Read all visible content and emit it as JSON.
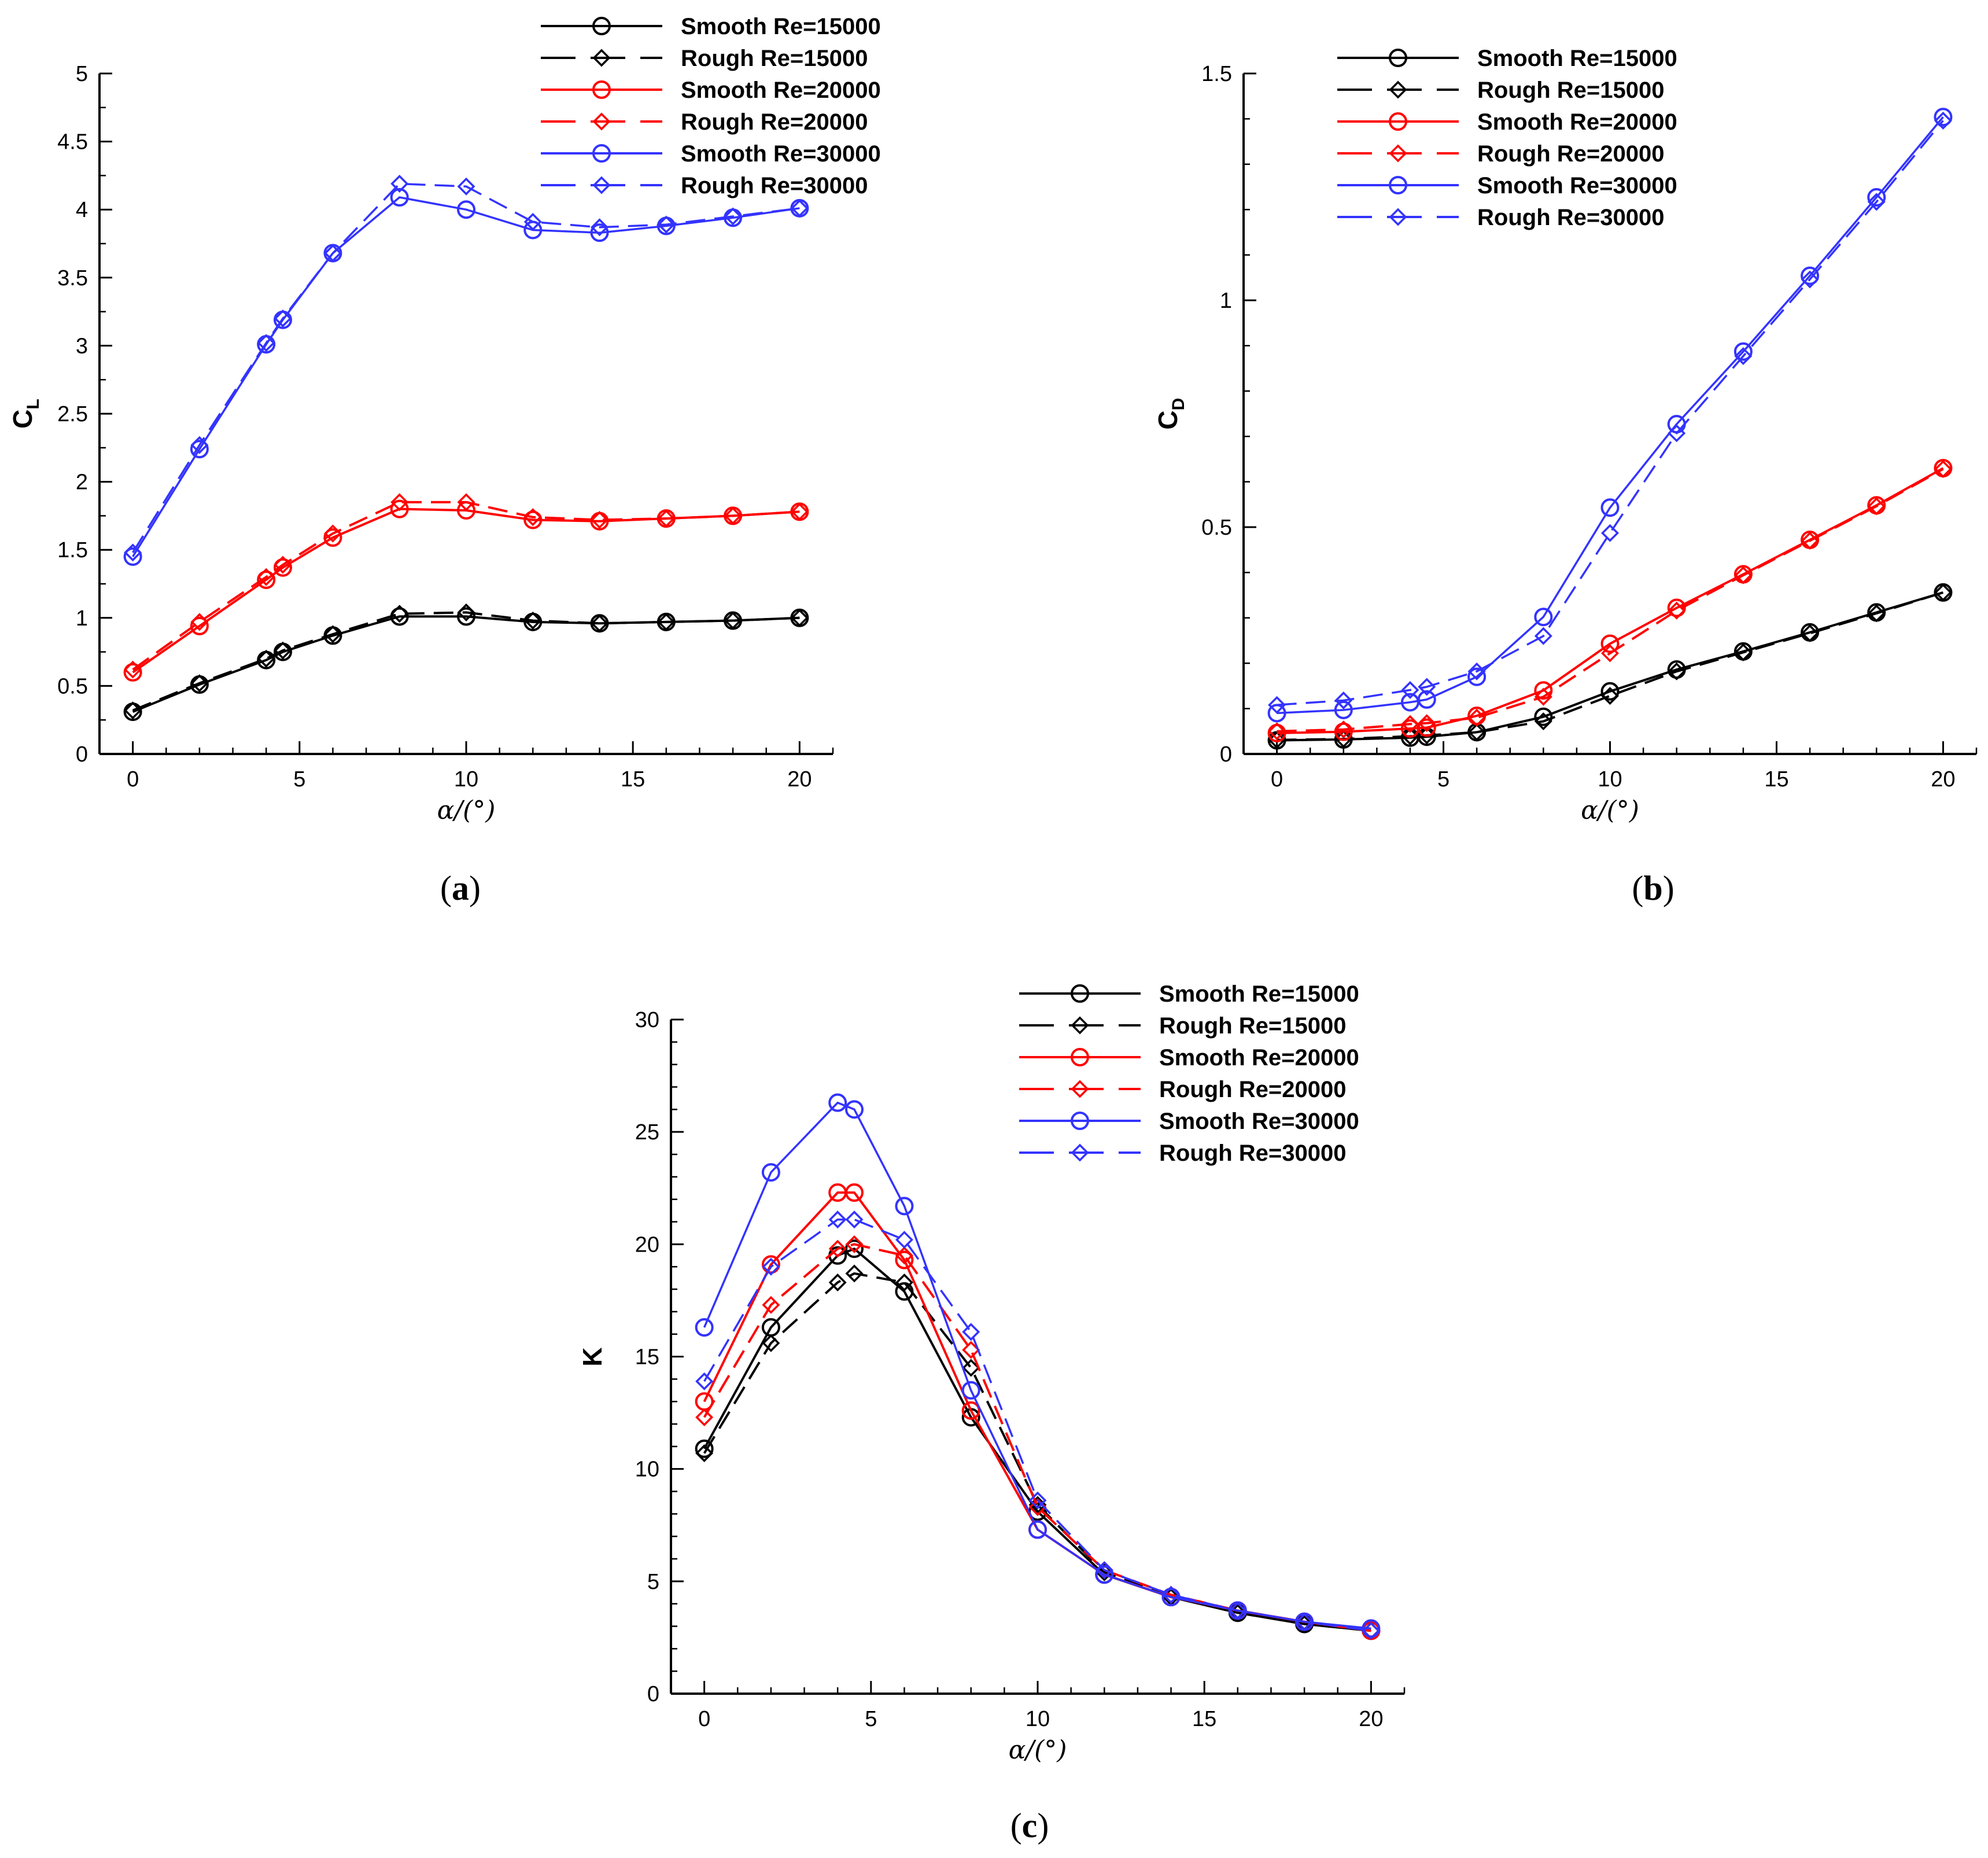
{
  "colors": {
    "Re15000": "#000000",
    "Re20000": "#ff0000",
    "Re30000": "#3333ff"
  },
  "legend_entries": [
    "Smooth Re=15000",
    "Rough Re=15000",
    "Smooth Re=20000",
    "Rough Re=20000",
    "Smooth Re=30000",
    "Rough Re=30000"
  ],
  "chart_data": [
    {
      "id": "a",
      "panel_label": "a",
      "type": "line",
      "xlabel": "α/(°)",
      "ylabel": "C",
      "ylabel_sub": "L",
      "xlim": [
        -1,
        21
      ],
      "ylim": [
        0,
        5
      ],
      "xticks": [
        0,
        5,
        10,
        15,
        20
      ],
      "yticks": [
        0,
        0.5,
        1,
        1.5,
        2,
        2.5,
        3,
        3.5,
        4,
        4.5,
        5
      ],
      "yticklabels": [
        "0",
        "0.5",
        "1",
        "1.5",
        "2",
        "2.5",
        "3",
        "3.5",
        "4",
        "4.5",
        "5"
      ],
      "grid": false,
      "legend_position": "top-right",
      "series": [
        {
          "name": "Smooth Re=15000",
          "marker": "circle",
          "dash": false,
          "color_key": "Re15000",
          "x": [
            0,
            2,
            4,
            4.5,
            6,
            8,
            10,
            12,
            14,
            16,
            18,
            20
          ],
          "y": [
            0.31,
            0.51,
            0.69,
            0.75,
            0.87,
            1.01,
            1.01,
            0.97,
            0.96,
            0.97,
            0.98,
            1.0
          ]
        },
        {
          "name": "Rough Re=15000",
          "marker": "diamond",
          "dash": true,
          "color_key": "Re15000",
          "x": [
            0,
            2,
            4,
            4.5,
            6,
            8,
            10,
            12,
            14,
            16,
            18,
            20
          ],
          "y": [
            0.32,
            0.52,
            0.7,
            0.76,
            0.88,
            1.03,
            1.04,
            0.98,
            0.96,
            0.97,
            0.98,
            1.0
          ]
        },
        {
          "name": "Smooth Re=20000",
          "marker": "circle",
          "dash": false,
          "color_key": "Re20000",
          "x": [
            0,
            2,
            4,
            4.5,
            6,
            8,
            10,
            12,
            14,
            16,
            18,
            20
          ],
          "y": [
            0.6,
            0.94,
            1.28,
            1.37,
            1.59,
            1.8,
            1.79,
            1.72,
            1.71,
            1.73,
            1.75,
            1.78
          ]
        },
        {
          "name": "Rough Re=20000",
          "marker": "diamond",
          "dash": true,
          "color_key": "Re20000",
          "x": [
            0,
            2,
            4,
            4.5,
            6,
            8,
            10,
            12,
            14,
            16,
            18,
            20
          ],
          "y": [
            0.62,
            0.97,
            1.3,
            1.39,
            1.62,
            1.85,
            1.85,
            1.74,
            1.72,
            1.73,
            1.75,
            1.78
          ]
        },
        {
          "name": "Smooth Re=30000",
          "marker": "circle",
          "dash": false,
          "color_key": "Re30000",
          "x": [
            0,
            2,
            4,
            4.5,
            6,
            8,
            10,
            12,
            14,
            16,
            18,
            20
          ],
          "y": [
            1.45,
            2.24,
            3.01,
            3.19,
            3.68,
            4.09,
            4.0,
            3.85,
            3.83,
            3.88,
            3.94,
            4.01
          ]
        },
        {
          "name": "Rough Re=30000",
          "marker": "diamond",
          "dash": true,
          "color_key": "Re30000",
          "x": [
            0,
            2,
            4,
            4.5,
            6,
            8,
            10,
            12,
            14,
            16,
            18,
            20
          ],
          "y": [
            1.48,
            2.27,
            3.02,
            3.2,
            3.68,
            4.19,
            4.17,
            3.91,
            3.87,
            3.89,
            3.95,
            4.01
          ]
        }
      ]
    },
    {
      "id": "b",
      "panel_label": "b",
      "type": "line",
      "xlabel": "α/(°)",
      "ylabel": "C",
      "ylabel_sub": "D",
      "xlim": [
        -1,
        21
      ],
      "ylim": [
        0,
        1.5
      ],
      "xticks": [
        0,
        5,
        10,
        15,
        20
      ],
      "yticks": [
        0,
        0.5,
        1,
        1.5
      ],
      "yticklabels": [
        "0",
        "0.5",
        "1",
        "1.5"
      ],
      "grid": false,
      "legend_position": "top-left",
      "series": [
        {
          "name": "Smooth Re=15000",
          "marker": "circle",
          "dash": false,
          "color_key": "Re15000",
          "x": [
            0,
            2,
            4,
            4.5,
            6,
            8,
            10,
            12,
            14,
            16,
            18,
            20
          ],
          "y": [
            0.03,
            0.032,
            0.036,
            0.038,
            0.048,
            0.082,
            0.138,
            0.186,
            0.226,
            0.268,
            0.312,
            0.356
          ]
        },
        {
          "name": "Rough Re=15000",
          "marker": "diamond",
          "dash": true,
          "color_key": "Re15000",
          "x": [
            0,
            2,
            4,
            4.5,
            6,
            8,
            10,
            12,
            14,
            16,
            18,
            20
          ],
          "y": [
            0.031,
            0.033,
            0.039,
            0.041,
            0.048,
            0.072,
            0.128,
            0.182,
            0.224,
            0.266,
            0.31,
            0.356
          ]
        },
        {
          "name": "Smooth Re=20000",
          "marker": "circle",
          "dash": false,
          "color_key": "Re20000",
          "x": [
            0,
            2,
            4,
            4.5,
            6,
            8,
            10,
            12,
            14,
            16,
            18,
            20
          ],
          "y": [
            0.046,
            0.049,
            0.056,
            0.058,
            0.084,
            0.14,
            0.243,
            0.322,
            0.396,
            0.472,
            0.548,
            0.63
          ]
        },
        {
          "name": "Rough Re=20000",
          "marker": "diamond",
          "dash": true,
          "color_key": "Re20000",
          "x": [
            0,
            2,
            4,
            4.5,
            6,
            8,
            10,
            12,
            14,
            16,
            18,
            20
          ],
          "y": [
            0.05,
            0.054,
            0.066,
            0.068,
            0.08,
            0.126,
            0.222,
            0.316,
            0.394,
            0.47,
            0.546,
            0.628
          ]
        },
        {
          "name": "Smooth Re=30000",
          "marker": "circle",
          "dash": false,
          "color_key": "Re30000",
          "x": [
            0,
            2,
            4,
            4.5,
            6,
            8,
            10,
            12,
            14,
            16,
            18,
            20
          ],
          "y": [
            0.09,
            0.097,
            0.114,
            0.12,
            0.17,
            0.302,
            0.543,
            0.727,
            0.887,
            1.054,
            1.227,
            1.404
          ]
        },
        {
          "name": "Rough Re=30000",
          "marker": "diamond",
          "dash": true,
          "color_key": "Re30000",
          "x": [
            0,
            2,
            4,
            4.5,
            6,
            8,
            10,
            12,
            14,
            16,
            18,
            20
          ],
          "y": [
            0.108,
            0.118,
            0.141,
            0.148,
            0.182,
            0.26,
            0.487,
            0.707,
            0.877,
            1.046,
            1.217,
            1.396
          ]
        }
      ]
    },
    {
      "id": "c",
      "panel_label": "c",
      "type": "line",
      "xlabel": "α/(°)",
      "ylabel": "K",
      "ylabel_sub": "",
      "xlim": [
        -1,
        21
      ],
      "ylim": [
        0,
        30
      ],
      "xticks": [
        0,
        5,
        10,
        15,
        20
      ],
      "yticks": [
        0,
        5,
        10,
        15,
        20,
        25,
        30
      ],
      "yticklabels": [
        "0",
        "5",
        "10",
        "15",
        "20",
        "25",
        "30"
      ],
      "grid": false,
      "legend_position": "top-right",
      "series": [
        {
          "name": "Smooth Re=15000",
          "marker": "circle",
          "dash": false,
          "color_key": "Re15000",
          "x": [
            0,
            2,
            4,
            4.5,
            6,
            8,
            10,
            12,
            14,
            16,
            18,
            20
          ],
          "y": [
            10.9,
            16.3,
            19.5,
            19.8,
            17.9,
            12.3,
            8.1,
            5.3,
            4.3,
            3.6,
            3.1,
            2.8
          ]
        },
        {
          "name": "Rough Re=15000",
          "marker": "diamond",
          "dash": true,
          "color_key": "Re15000",
          "x": [
            0,
            2,
            4,
            4.5,
            6,
            8,
            10,
            12,
            14,
            16,
            18,
            20
          ],
          "y": [
            10.7,
            15.6,
            18.3,
            18.7,
            18.3,
            14.5,
            8.4,
            5.4,
            4.3,
            3.6,
            3.1,
            2.8
          ]
        },
        {
          "name": "Smooth Re=20000",
          "marker": "circle",
          "dash": false,
          "color_key": "Re20000",
          "x": [
            0,
            2,
            4,
            4.5,
            6,
            8,
            10,
            12,
            14,
            16,
            18,
            20
          ],
          "y": [
            13.0,
            19.1,
            22.3,
            22.3,
            19.3,
            12.6,
            7.3,
            5.3,
            4.3,
            3.7,
            3.2,
            2.8
          ]
        },
        {
          "name": "Rough Re=20000",
          "marker": "diamond",
          "dash": true,
          "color_key": "Re20000",
          "x": [
            0,
            2,
            4,
            4.5,
            6,
            8,
            10,
            12,
            14,
            16,
            18,
            20
          ],
          "y": [
            12.3,
            17.3,
            19.8,
            20.0,
            19.5,
            15.3,
            8.3,
            5.5,
            4.4,
            3.7,
            3.2,
            2.8
          ]
        },
        {
          "name": "Smooth Re=30000",
          "marker": "circle",
          "dash": false,
          "color_key": "Re30000",
          "x": [
            0,
            2,
            4,
            4.5,
            6,
            8,
            10,
            12,
            14,
            16,
            18,
            20
          ],
          "y": [
            16.3,
            23.2,
            26.3,
            26.0,
            21.7,
            13.5,
            7.3,
            5.3,
            4.3,
            3.7,
            3.2,
            2.9
          ]
        },
        {
          "name": "Rough Re=30000",
          "marker": "diamond",
          "dash": true,
          "color_key": "Re30000",
          "x": [
            0,
            2,
            4,
            4.5,
            6,
            8,
            10,
            12,
            14,
            16,
            18,
            20
          ],
          "y": [
            13.9,
            19.0,
            21.1,
            21.1,
            20.2,
            16.1,
            8.6,
            5.5,
            4.4,
            3.7,
            3.2,
            2.8
          ]
        }
      ]
    }
  ]
}
